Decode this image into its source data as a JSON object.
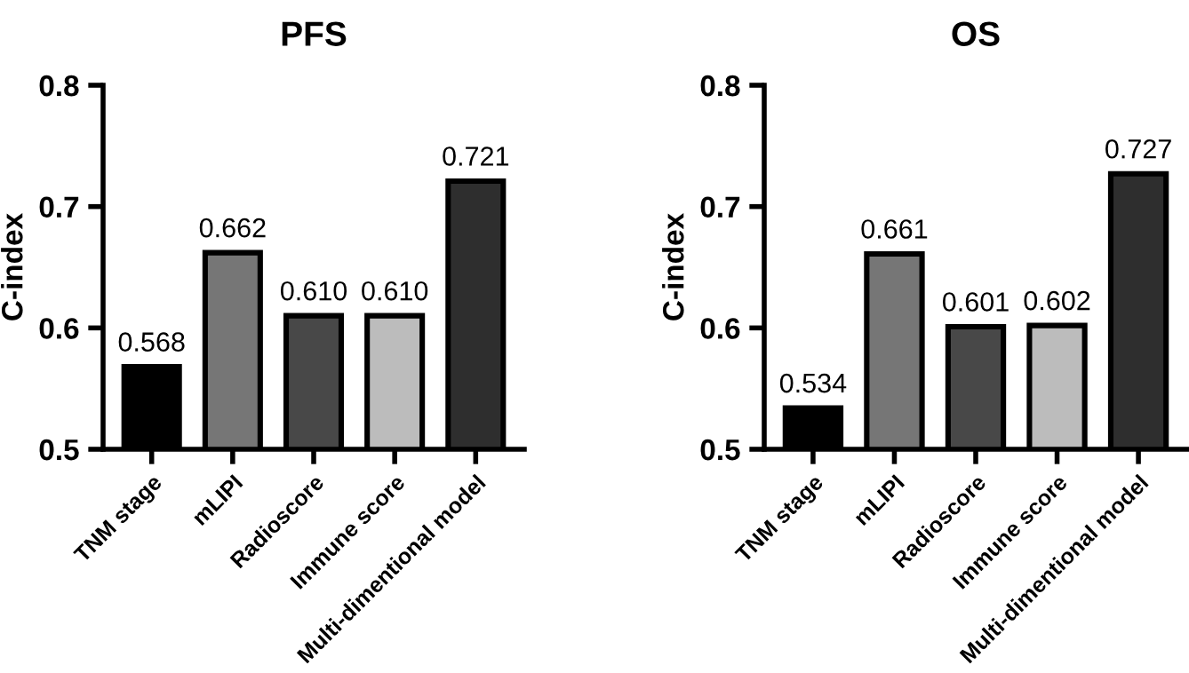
{
  "chart_data": [
    {
      "type": "bar",
      "title": "PFS",
      "ylabel": "C-index",
      "categories": [
        "TNM stage",
        "mLIPI",
        "Radioscore",
        "Immune score",
        "Multi-dimentional model"
      ],
      "values": [
        0.568,
        0.662,
        0.61,
        0.61,
        0.721
      ],
      "value_labels": [
        "0.568",
        "0.662",
        "0.610",
        "0.610",
        "0.721"
      ],
      "colors": [
        "#000000",
        "#767676",
        "#484848",
        "#bcbcbc",
        "#2e2e2e"
      ],
      "ylim": [
        0.5,
        0.8
      ],
      "yticks": [
        {
          "value": 0.5,
          "label": "0.5"
        },
        {
          "value": 0.6,
          "label": "0.6"
        },
        {
          "value": 0.7,
          "label": "0.7"
        },
        {
          "value": 0.8,
          "label": "0.8"
        }
      ],
      "grid": false
    },
    {
      "type": "bar",
      "title": "OS",
      "ylabel": "C-index",
      "categories": [
        "TNM stage",
        "mLIPI",
        "Radioscore",
        "Immune score",
        "Multi-dimentional model"
      ],
      "values": [
        0.534,
        0.661,
        0.601,
        0.602,
        0.727
      ],
      "value_labels": [
        "0.534",
        "0.661",
        "0.601",
        "0.602",
        "0.727"
      ],
      "colors": [
        "#000000",
        "#767676",
        "#484848",
        "#bcbcbc",
        "#2e2e2e"
      ],
      "ylim": [
        0.5,
        0.8
      ],
      "yticks": [
        {
          "value": 0.5,
          "label": "0.5"
        },
        {
          "value": 0.6,
          "label": "0.6"
        },
        {
          "value": 0.7,
          "label": "0.7"
        },
        {
          "value": 0.8,
          "label": "0.8"
        }
      ],
      "grid": false
    }
  ]
}
